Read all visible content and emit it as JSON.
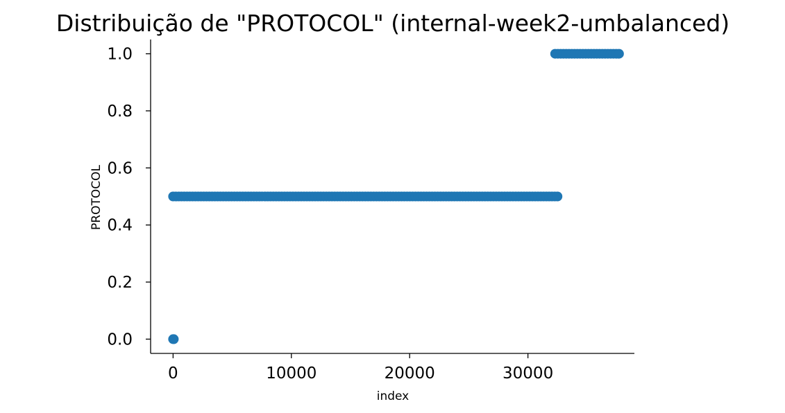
{
  "chart_data": {
    "type": "scatter",
    "title": "Distribuição de \"PROTOCOL\" (internal-week2-umbalanced)",
    "xlabel": "index",
    "ylabel": "PROTOCOL",
    "xlim": [
      -1900,
      39000
    ],
    "ylim": [
      -0.05,
      1.05
    ],
    "xticks": [
      {
        "value": 0,
        "label": "0"
      },
      {
        "value": 10000,
        "label": "10000"
      },
      {
        "value": 20000,
        "label": "20000"
      },
      {
        "value": 30000,
        "label": "30000"
      }
    ],
    "yticks": [
      {
        "value": 0.0,
        "label": "0.0"
      },
      {
        "value": 0.2,
        "label": "0.2"
      },
      {
        "value": 0.4,
        "label": "0.4"
      },
      {
        "value": 0.6,
        "label": "0.6"
      },
      {
        "value": 0.8,
        "label": "0.8"
      },
      {
        "value": 1.0,
        "label": "1.0"
      }
    ],
    "grid": false,
    "marker_color": "#1f77b4",
    "series": [
      {
        "segments": [
          {
            "x_start": 0,
            "x_end": 60,
            "y": 0.0
          },
          {
            "x_start": 0,
            "x_end": 32500,
            "y": 0.5
          },
          {
            "x_start": 32300,
            "x_end": 37700,
            "y": 1.0
          }
        ]
      }
    ]
  }
}
